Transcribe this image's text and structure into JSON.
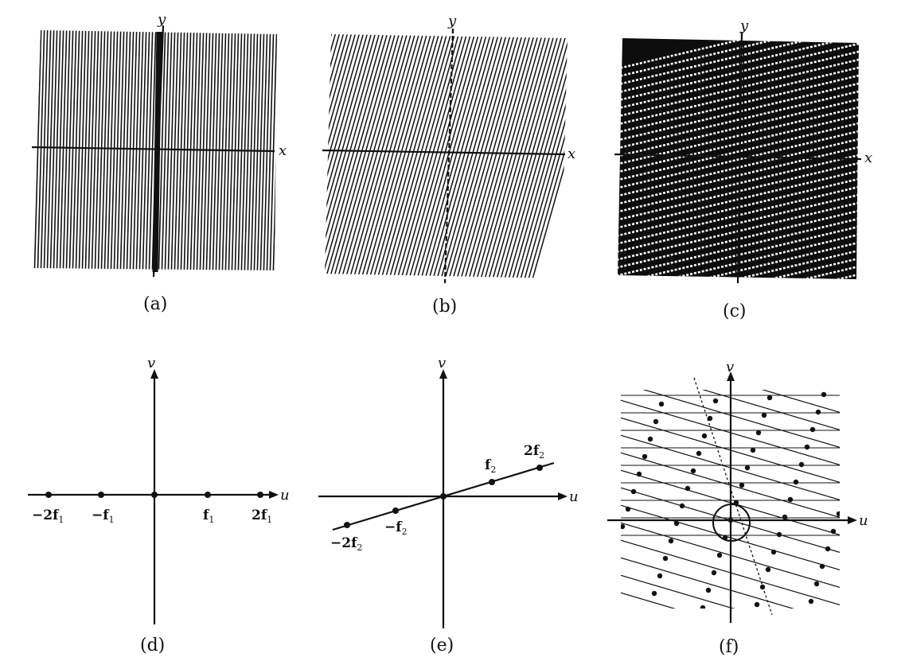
{
  "axis_labels": {
    "x": "x",
    "y": "y",
    "u": "u",
    "v": "v"
  },
  "panels": {
    "a": {
      "caption": "(a)"
    },
    "b": {
      "caption": "(b)"
    },
    "c": {
      "caption": "(c)"
    },
    "d": {
      "caption": "(d)",
      "points": [
        {
          "main": "−2f",
          "sub": "1"
        },
        {
          "main": "−f",
          "sub": "1"
        },
        {
          "main": "f",
          "sub": "1"
        },
        {
          "main": "2f",
          "sub": "1"
        }
      ]
    },
    "e": {
      "caption": "(e)",
      "points": [
        {
          "main": "−2f",
          "sub": "2"
        },
        {
          "main": "−f",
          "sub": "2"
        },
        {
          "main": "f",
          "sub": "2"
        },
        {
          "main": "2f",
          "sub": "2"
        }
      ]
    },
    "f": {
      "caption": "(f)"
    }
  },
  "colors": {
    "ink": "#111111",
    "paper": "#ffffff"
  }
}
